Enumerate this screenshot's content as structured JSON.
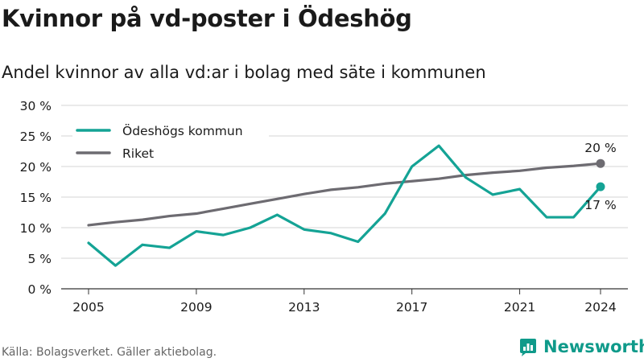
{
  "title": "Kvinnor på vd-poster i Ödeshög",
  "subtitle": "Andel kvinnor av alla vd:ar i bolag med säte i kommunen",
  "source": "Källa: Bolagsverket. Gäller aktiebolag.",
  "brand": "Newsworthy",
  "colors": {
    "odeshog": "#14a395",
    "riket": "#6d6b71",
    "brand": "#0f9a8a"
  },
  "chart_data": {
    "type": "line",
    "x": [
      2005,
      2006,
      2007,
      2008,
      2009,
      2010,
      2011,
      2012,
      2013,
      2014,
      2015,
      2016,
      2017,
      2018,
      2019,
      2020,
      2021,
      2022,
      2023,
      2024
    ],
    "series": [
      {
        "name": "Ödeshögs kommun",
        "values": [
          7.5,
          3.8,
          7.2,
          6.7,
          9.4,
          8.8,
          10.0,
          12.1,
          9.7,
          9.1,
          7.7,
          12.3,
          20.0,
          23.4,
          18.2,
          15.4,
          16.3,
          11.7,
          11.7,
          16.7
        ],
        "end_label": "17 %"
      },
      {
        "name": "Riket",
        "values": [
          10.4,
          10.9,
          11.3,
          11.9,
          12.3,
          13.1,
          13.9,
          14.7,
          15.5,
          16.2,
          16.6,
          17.2,
          17.6,
          18.0,
          18.6,
          19.0,
          19.3,
          19.8,
          20.1,
          20.5
        ],
        "end_label": "20 %"
      }
    ],
    "y_ticks": [
      "0 %",
      "5 %",
      "10 %",
      "15 %",
      "20 %",
      "25 %",
      "30 %"
    ],
    "y_tick_values": [
      0,
      5,
      10,
      15,
      20,
      25,
      30
    ],
    "x_ticks": [
      "2005",
      "2009",
      "2013",
      "2017",
      "2021",
      "2024"
    ],
    "x_tick_values": [
      2005,
      2009,
      2013,
      2017,
      2021,
      2024
    ],
    "ylim": [
      0,
      30
    ],
    "xlim": [
      2005,
      2024
    ],
    "grid": true,
    "legend": "top-left"
  }
}
